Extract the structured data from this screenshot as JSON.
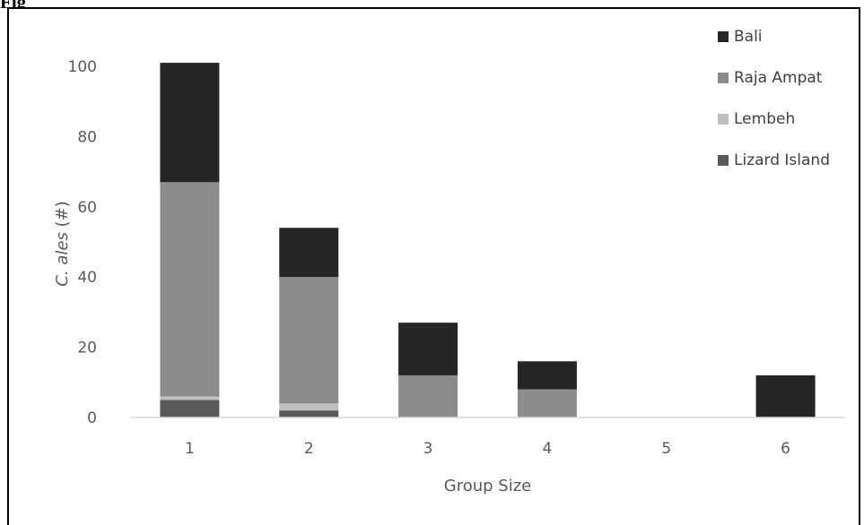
{
  "figure_label": "Fig",
  "chart_data": {
    "type": "bar",
    "stacked": true,
    "categories": [
      "1",
      "2",
      "3",
      "4",
      "5",
      "6"
    ],
    "series": [
      {
        "name": "Lizard Island",
        "color": "#595959",
        "values": [
          5,
          2,
          0,
          0,
          0,
          0
        ]
      },
      {
        "name": "Lembeh",
        "color": "#bfbfbf",
        "values": [
          1,
          2,
          0,
          0,
          0,
          0
        ]
      },
      {
        "name": "Raja Ampat",
        "color": "#8c8c8c",
        "values": [
          61,
          36,
          12,
          8,
          0,
          0
        ]
      },
      {
        "name": "Bali",
        "color": "#262626",
        "values": [
          34,
          14,
          15,
          8,
          0,
          12
        ]
      }
    ],
    "legend_order": [
      "Bali",
      "Raja Ampat",
      "Lembeh",
      "Lizard Island"
    ],
    "legend_position": "top-right",
    "ylabel_species": "C. ales",
    "ylabel_unit": "(#)",
    "xlabel": "Group Size",
    "ylim": [
      0,
      100
    ],
    "yticks": [
      0,
      20,
      40,
      60,
      80,
      100
    ],
    "grid": false
  }
}
